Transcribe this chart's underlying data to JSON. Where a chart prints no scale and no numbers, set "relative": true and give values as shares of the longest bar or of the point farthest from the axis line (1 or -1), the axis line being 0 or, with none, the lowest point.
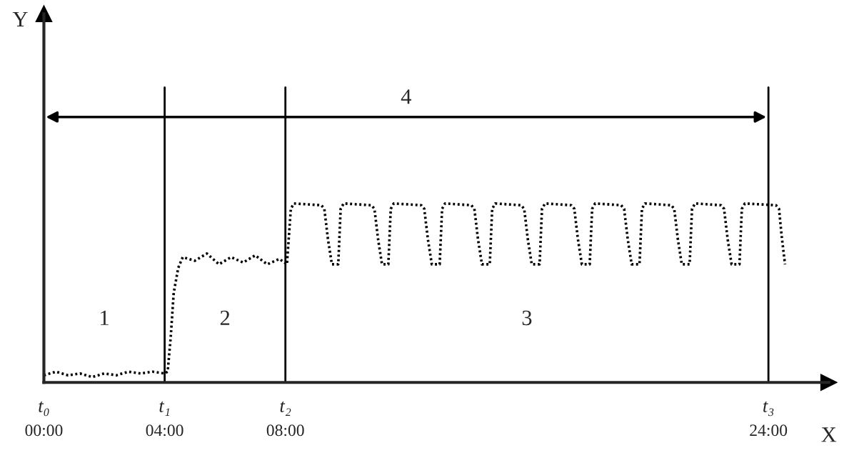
{
  "chart_data": {
    "type": "line",
    "relative": true,
    "xlabel": "X",
    "xlim": [
      0,
      26
    ],
    "xticks": [
      {
        "value": 0,
        "label": "00:00"
      },
      {
        "value": 4,
        "label": "04:00"
      },
      {
        "value": 8,
        "label": "08:00"
      },
      {
        "value": 24,
        "label": "24:00"
      }
    ],
    "tick_labels": "x",
    "ref_lines": [
      {
        "axis": "x",
        "value": 0,
        "label": "t₀"
      },
      {
        "axis": "x",
        "value": 4,
        "label": "t₁"
      },
      {
        "axis": "x",
        "value": 8,
        "label": "t₂"
      },
      {
        "axis": "x",
        "value": 24,
        "label": "t₃"
      }
    ],
    "annotations": [
      "Y",
      "1",
      "2",
      "3",
      "4"
    ],
    "marker": "none",
    "line_style": "dotted",
    "grid": false,
    "legend": false,
    "series": [
      {
        "color": "#000000",
        "x": [
          0,
          0.4,
          0.8,
          1.2,
          1.6,
          2.0,
          2.4,
          2.8,
          3.2,
          3.6,
          4.0,
          4.1,
          4.2,
          4.3,
          4.45,
          4.6,
          5.0,
          5.4,
          5.8,
          6.2,
          6.6,
          7.0,
          7.4,
          7.8,
          8.05,
          8.18,
          8.28,
          9.19,
          9.29,
          9.41,
          9.54,
          9.75,
          9.83,
          9.93,
          10.85,
          10.95,
          11.07,
          11.2,
          11.41,
          11.49,
          11.59,
          12.5,
          12.6,
          12.72,
          12.85,
          13.11,
          13.19,
          13.29,
          14.16,
          14.26,
          14.38,
          14.51,
          14.77,
          14.85,
          14.95,
          15.81,
          15.91,
          16.03,
          16.16,
          16.42,
          16.5,
          16.6,
          17.47,
          17.57,
          17.69,
          17.82,
          18.08,
          18.16,
          18.26,
          19.12,
          19.22,
          19.34,
          19.47,
          19.73,
          19.81,
          19.91,
          20.78,
          20.88,
          21.0,
          21.13,
          21.39,
          21.47,
          21.57,
          22.43,
          22.53,
          22.65,
          22.78,
          23.04,
          23.12,
          23.22,
          24.25,
          24.35,
          24.45,
          24.55
        ],
        "values": [
          0.04,
          0.06,
          0.04,
          0.05,
          0.03,
          0.05,
          0.04,
          0.06,
          0.05,
          0.06,
          0.05,
          0.06,
          0.25,
          0.5,
          0.64,
          0.7,
          0.68,
          0.72,
          0.66,
          0.7,
          0.67,
          0.71,
          0.66,
          0.69,
          0.66,
          0.97,
          1.0,
          0.99,
          0.97,
          0.8,
          0.66,
          0.66,
          0.97,
          1.0,
          0.99,
          0.97,
          0.8,
          0.66,
          0.66,
          0.97,
          1.0,
          0.99,
          0.97,
          0.8,
          0.66,
          0.66,
          0.97,
          1.0,
          0.99,
          0.97,
          0.8,
          0.66,
          0.66,
          0.97,
          1.0,
          0.99,
          0.97,
          0.8,
          0.66,
          0.66,
          0.97,
          1.0,
          0.99,
          0.97,
          0.8,
          0.66,
          0.66,
          0.97,
          1.0,
          0.99,
          0.97,
          0.8,
          0.66,
          0.66,
          0.97,
          1.0,
          0.99,
          0.97,
          0.8,
          0.66,
          0.66,
          0.97,
          1.0,
          0.99,
          0.97,
          0.8,
          0.66,
          0.66,
          0.97,
          1.0,
          0.99,
          0.97,
          0.8,
          0.66
        ]
      }
    ]
  }
}
